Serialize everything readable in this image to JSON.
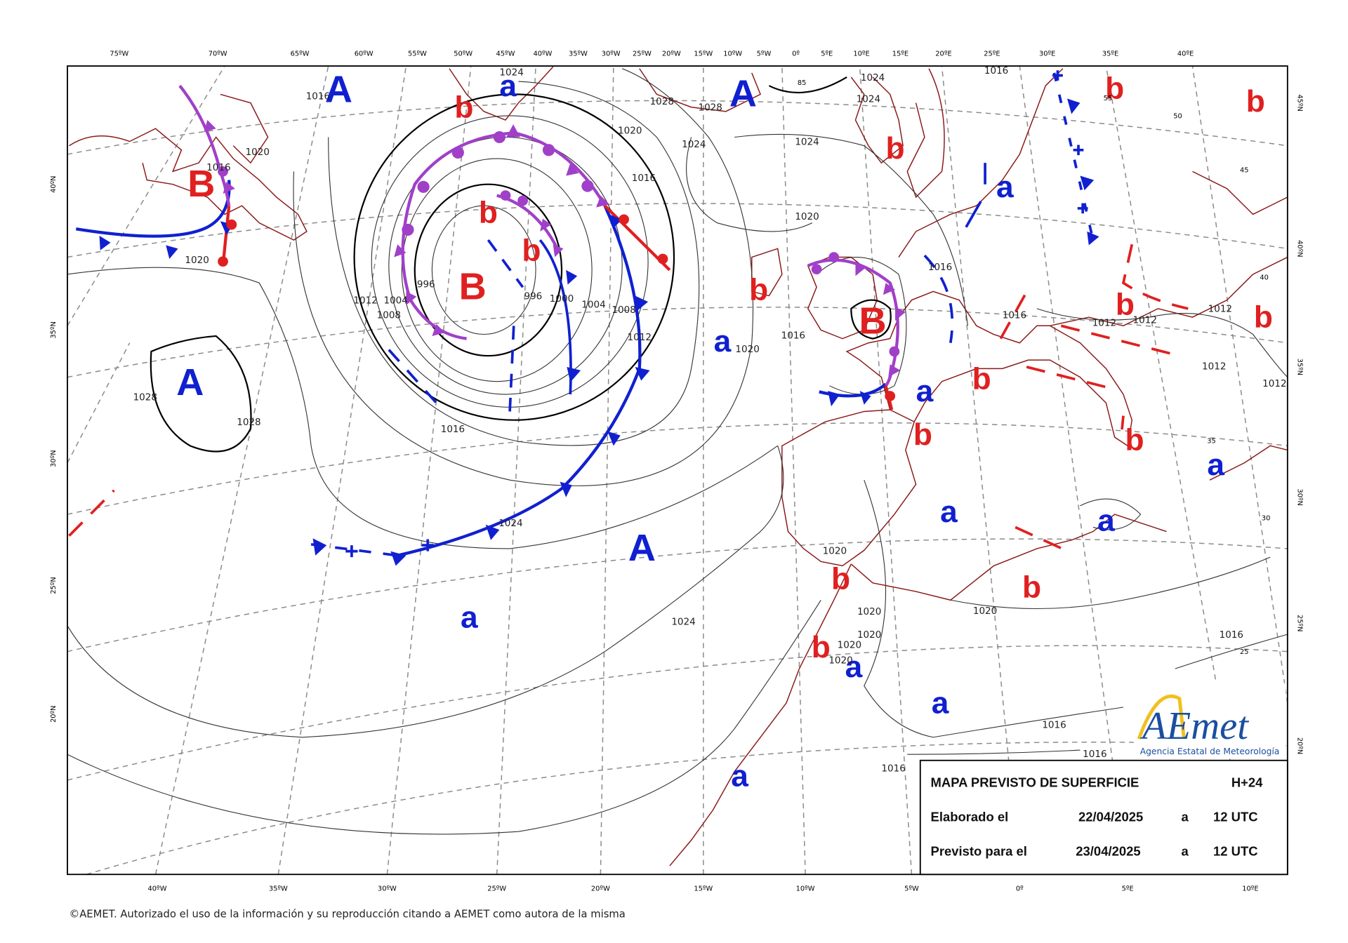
{
  "top_lon_labels": [
    "75ºW",
    "70ºW",
    "65ºW",
    "60ºW",
    "55ºW",
    "50ºW",
    "45ºW",
    "40ºW",
    "35ºW",
    "30ºW",
    "25ºW",
    "20ºW",
    "15ºW",
    "10ºW",
    "5ºW",
    "0º",
    "5ºE",
    "10ºE",
    "15ºE",
    "20ºE",
    "25ºE",
    "30ºE",
    "35ºE",
    "40ºE"
  ],
  "bottom_lon_labels": [
    "40ºW",
    "35ºW",
    "30ºW",
    "25ºW",
    "20ºW",
    "15ºW",
    "10ºW",
    "5ºW",
    "0º",
    "5ºE",
    "10ºE"
  ],
  "left_lat_labels": [
    "40ºN",
    "35ºN",
    "30ºN",
    "25ºN",
    "20ºN"
  ],
  "right_lat_labels": [
    "45ºN",
    "40ºN",
    "35ºN",
    "30ºN",
    "25ºN",
    "20ºN"
  ],
  "pressure_centers": [
    "A",
    "a",
    "b",
    "A",
    "B",
    "b",
    "a",
    "b",
    "b",
    "B",
    "b",
    "B",
    "a",
    "A",
    "b",
    "a",
    "b",
    "b",
    "b",
    "b",
    "b",
    "b",
    "a",
    "a",
    "a",
    "A",
    "b",
    "b",
    "a",
    "b",
    "a",
    "a",
    "a"
  ],
  "isobar_labels": [
    "1024",
    "1028",
    "1028",
    "1020",
    "1024",
    "1024",
    "1016",
    "1020",
    "1016",
    "1020",
    "1012",
    "1004",
    "1008",
    "996",
    "996",
    "1000",
    "1004",
    "1008",
    "1012",
    "1016",
    "1028",
    "1028",
    "1024",
    "1024",
    "1020",
    "1020",
    "1016",
    "1016",
    "1016",
    "1012",
    "1012",
    "1012",
    "1012",
    "1012",
    "1020",
    "1020",
    "1020",
    "1020",
    "1020",
    "1020",
    "1016",
    "1016",
    "1016",
    "1016",
    "1016",
    "1024",
    "1024",
    "1016"
  ],
  "grid_number_labels": [
    "85",
    "55",
    "50",
    "45",
    "40",
    "35",
    "30",
    "25"
  ],
  "info_box": {
    "title": "MAPA PREVISTO DE SUPERFICIE",
    "lead_time": "H+24",
    "issued_label": "Elaborado el",
    "issued_date": "22/04/2025",
    "issued_at": "a",
    "issued_time": "12 UTC",
    "valid_label": "Previsto para el",
    "valid_date": "23/04/2025",
    "valid_at": "a",
    "valid_time": "12 UTC"
  },
  "logo": {
    "name": "AEmet",
    "subtitle": "Agencia Estatal de Meteorología"
  },
  "copyright": "©AEMET. Autorizado el uso de la información y su reproducción citando a AEMET como autora de la misma"
}
